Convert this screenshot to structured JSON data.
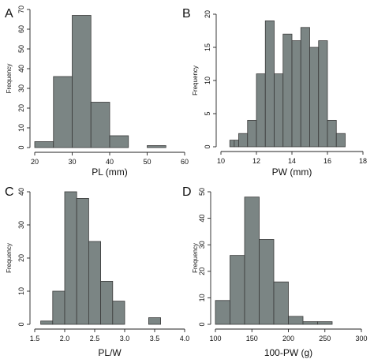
{
  "chart_data": [
    {
      "type": "bar",
      "panel": "A",
      "xlabel": "PL (mm)",
      "ylabel": "Frequency",
      "xticks": [
        20,
        30,
        40,
        50,
        60
      ],
      "yticks": [
        0,
        10,
        20,
        30,
        40,
        50,
        60,
        70
      ],
      "xlim": [
        20,
        60
      ],
      "ylim": [
        0,
        70
      ],
      "bins": [
        {
          "x0": 20,
          "x1": 25,
          "value": 3
        },
        {
          "x0": 25,
          "x1": 30,
          "value": 36
        },
        {
          "x0": 30,
          "x1": 35,
          "value": 67
        },
        {
          "x0": 35,
          "x1": 40,
          "value": 23
        },
        {
          "x0": 40,
          "x1": 45,
          "value": 6
        },
        {
          "x0": 45,
          "x1": 50,
          "value": 0
        },
        {
          "x0": 50,
          "x1": 55,
          "value": 1
        }
      ]
    },
    {
      "type": "bar",
      "panel": "B",
      "xlabel": "PW (mm)",
      "ylabel": "Frequency",
      "xticks": [
        10,
        12,
        14,
        16,
        18
      ],
      "yticks": [
        0,
        5,
        10,
        15,
        20
      ],
      "xlim": [
        10,
        18
      ],
      "ylim": [
        0,
        20
      ],
      "bins": [
        {
          "x0": 10.5,
          "x1": 10.75,
          "value": 1
        },
        {
          "x0": 10.75,
          "x1": 11,
          "value": 1
        },
        {
          "x0": 11,
          "x1": 11.5,
          "value": 2
        },
        {
          "x0": 11.5,
          "x1": 12,
          "value": 4
        },
        {
          "x0": 12,
          "x1": 12.5,
          "value": 11
        },
        {
          "x0": 12.5,
          "x1": 13,
          "value": 19
        },
        {
          "x0": 13,
          "x1": 13.5,
          "value": 11
        },
        {
          "x0": 13.5,
          "x1": 14,
          "value": 17
        },
        {
          "x0": 14,
          "x1": 14.5,
          "value": 16
        },
        {
          "x0": 14.5,
          "x1": 15,
          "value": 18
        },
        {
          "x0": 15,
          "x1": 15.5,
          "value": 15
        },
        {
          "x0": 15.5,
          "x1": 16,
          "value": 16
        },
        {
          "x0": 16,
          "x1": 16.5,
          "value": 4
        },
        {
          "x0": 16.5,
          "x1": 17,
          "value": 2
        }
      ]
    },
    {
      "type": "bar",
      "panel": "C",
      "xlabel": "PL/W",
      "ylabel": "Frequency",
      "xticks": [
        1.5,
        2.0,
        2.5,
        3.0,
        3.5,
        4.0
      ],
      "xtick_labels": [
        "1.5",
        "2.0",
        "2.5",
        "3.0",
        "3.5",
        "4.0"
      ],
      "yticks": [
        0,
        10,
        20,
        30,
        40
      ],
      "xlim": [
        1.5,
        4.0
      ],
      "ylim": [
        0,
        40
      ],
      "bins": [
        {
          "x0": 1.6,
          "x1": 1.8,
          "value": 1
        },
        {
          "x0": 1.8,
          "x1": 2.0,
          "value": 10
        },
        {
          "x0": 2.0,
          "x1": 2.2,
          "value": 40
        },
        {
          "x0": 2.2,
          "x1": 2.4,
          "value": 38
        },
        {
          "x0": 2.4,
          "x1": 2.6,
          "value": 25
        },
        {
          "x0": 2.6,
          "x1": 2.8,
          "value": 13
        },
        {
          "x0": 2.8,
          "x1": 3.0,
          "value": 7
        },
        {
          "x0": 3.0,
          "x1": 3.2,
          "value": 0
        },
        {
          "x0": 3.2,
          "x1": 3.4,
          "value": 0
        },
        {
          "x0": 3.4,
          "x1": 3.6,
          "value": 2
        }
      ]
    },
    {
      "type": "bar",
      "panel": "D",
      "xlabel": "100-PW (g)",
      "ylabel": "Frequency",
      "xticks": [
        100,
        150,
        200,
        250,
        300
      ],
      "yticks": [
        0,
        10,
        20,
        30,
        40,
        50
      ],
      "xlim": [
        100,
        300
      ],
      "ylim": [
        0,
        50
      ],
      "bins": [
        {
          "x0": 100,
          "x1": 120,
          "value": 9
        },
        {
          "x0": 120,
          "x1": 140,
          "value": 26
        },
        {
          "x0": 140,
          "x1": 160,
          "value": 48
        },
        {
          "x0": 160,
          "x1": 180,
          "value": 32
        },
        {
          "x0": 180,
          "x1": 200,
          "value": 16
        },
        {
          "x0": 200,
          "x1": 220,
          "value": 3
        },
        {
          "x0": 220,
          "x1": 240,
          "value": 1
        },
        {
          "x0": 240,
          "x1": 260,
          "value": 1
        }
      ]
    }
  ]
}
